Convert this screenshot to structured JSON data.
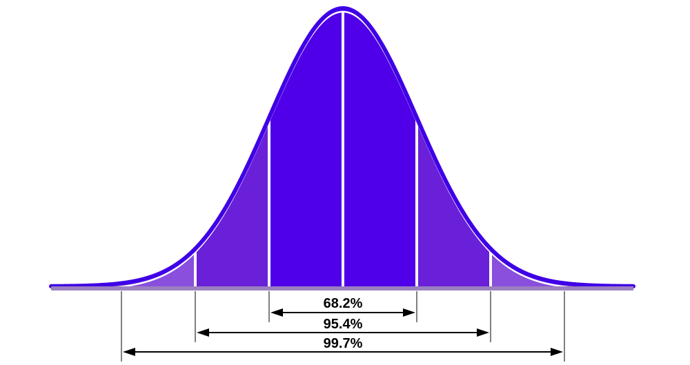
{
  "colors": {
    "outline": "#3f00e6",
    "divider": "#ffffff",
    "arrow": "#000000",
    "band_center": "#5000e8",
    "band_1_2": "#6a1fd9",
    "band_2_3": "#8a4fdc",
    "band_outer": "#9b7fbf"
  },
  "ranges": [
    {
      "label": "68.2%",
      "from_sigma": -1,
      "to_sigma": 1
    },
    {
      "label": "95.4%",
      "from_sigma": -2,
      "to_sigma": 2
    },
    {
      "label": "99.7%",
      "from_sigma": -3,
      "to_sigma": 3
    }
  ]
}
